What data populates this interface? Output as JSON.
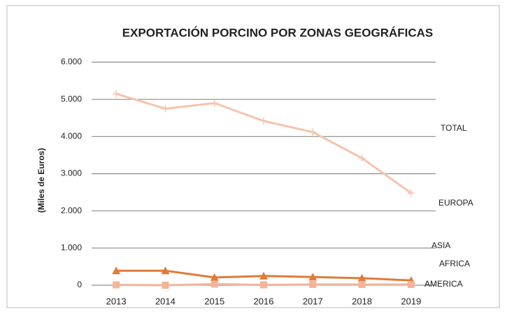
{
  "chart_data": {
    "type": "line",
    "title": "EXPORTACIÓN PORCINO POR ZONAS GEOGRÁFICAS",
    "y_label": "(Miles de Euros)",
    "categories": [
      "2013",
      "2014",
      "2015",
      "2016",
      "2017",
      "2018",
      "2019"
    ],
    "series": [
      {
        "color": "#f5c4ad",
        "marker": "plus",
        "values": [
          5150,
          4750,
          4900,
          4420,
          4120,
          3420,
          2480
        ]
      },
      {
        "color": "#e07b39",
        "marker": "triangle",
        "values": [
          390,
          390,
          210,
          250,
          220,
          190,
          130
        ]
      },
      {
        "color": "#f4b39b",
        "marker": "square",
        "values": [
          10,
          0,
          30,
          10,
          20,
          20,
          20
        ]
      }
    ],
    "annotations": [
      "TOTAL",
      "EUROPA",
      "ASIA",
      "AFRICA",
      "AMERICA"
    ],
    "ylim": [
      0,
      6000
    ],
    "yticks": [
      0,
      {
        "value": 1000,
        "label": "1.000"
      },
      {
        "value": 2000,
        "label": "2.000"
      },
      {
        "value": 3000,
        "label": "3.000"
      },
      {
        "value": 4000,
        "label": "4.000"
      },
      {
        "value": 5000,
        "label": "5.000"
      },
      {
        "value": 6000,
        "label": "6.000"
      }
    ],
    "grid": true
  }
}
